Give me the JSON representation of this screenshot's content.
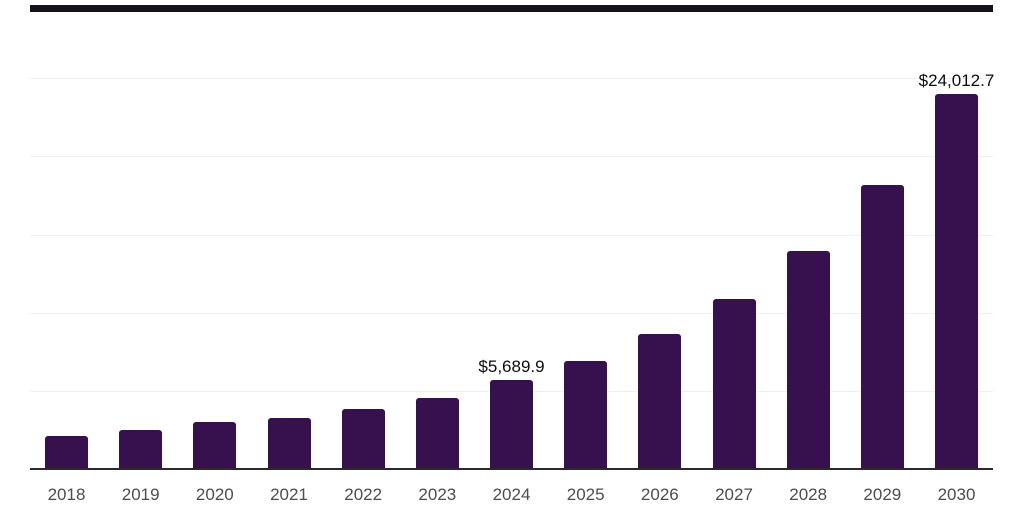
{
  "chart_data": {
    "type": "bar",
    "title": "",
    "xlabel": "",
    "ylabel": "",
    "categories": [
      "2018",
      "2019",
      "2020",
      "2021",
      "2022",
      "2023",
      "2024",
      "2025",
      "2026",
      "2027",
      "2028",
      "2029",
      "2030"
    ],
    "values": [
      2111,
      2495,
      3007,
      3262,
      3838,
      4542,
      5689.9,
      6909,
      8636,
      10875,
      13945,
      18167,
      24012.7
    ],
    "data_labels": {
      "2024": "$5,689.9",
      "2030": "$24,012.7"
    },
    "ylim": [
      0,
      30000
    ],
    "gridline_interval": 5000,
    "grid": true,
    "legend_position": "none",
    "colors": {
      "bar": "#36114e",
      "axis_line": "#2b2b2b",
      "gridline": "#efefef",
      "plot_top_border": "#15121c",
      "tick_label": "#4d4d4d",
      "data_label": "#0d0d0d",
      "background": "#ffffff"
    }
  }
}
